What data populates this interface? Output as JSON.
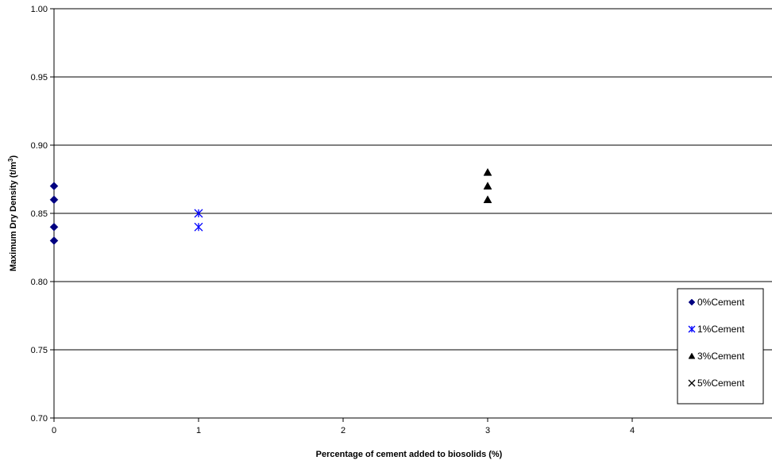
{
  "chart_data": {
    "type": "scatter",
    "xlabel": "Percentage of cement added to biosolids (%)",
    "ylabel_main": "Maximum Dry Density (t/m",
    "ylabel_sup": "3",
    "ylabel_end": ")",
    "xlim": [
      0,
      4.9
    ],
    "ylim": [
      0.7,
      1.0
    ],
    "x_ticks": [
      {
        "value": 0,
        "label": "0"
      },
      {
        "value": 1,
        "label": "1"
      },
      {
        "value": 2,
        "label": "2"
      },
      {
        "value": 3,
        "label": "3"
      },
      {
        "value": 4,
        "label": "4"
      }
    ],
    "y_ticks": [
      {
        "value": 0.7,
        "label": "0.70"
      },
      {
        "value": 0.75,
        "label": "0.75"
      },
      {
        "value": 0.8,
        "label": "0.80"
      },
      {
        "value": 0.85,
        "label": "0.85"
      },
      {
        "value": 0.9,
        "label": "0.90"
      },
      {
        "value": 0.95,
        "label": "0.95"
      },
      {
        "value": 1.0,
        "label": "1.00"
      }
    ],
    "grid": "horizontal",
    "legend_position": "bottom-right",
    "series": [
      {
        "name": "0%Cement",
        "marker": "diamond",
        "color": "#000080",
        "x": [
          0,
          0,
          0,
          0
        ],
        "y": [
          0.87,
          0.86,
          0.84,
          0.83
        ]
      },
      {
        "name": "1%Cement",
        "marker": "asterisk",
        "color": "#0000FF",
        "x": [
          1,
          1
        ],
        "y": [
          0.85,
          0.84
        ]
      },
      {
        "name": "3%Cement",
        "marker": "triangle",
        "color": "#000000",
        "x": [
          3,
          3,
          3
        ],
        "y": [
          0.88,
          0.87,
          0.86
        ]
      },
      {
        "name": "5%Cement",
        "marker": "cross",
        "color": "#000000",
        "x": [],
        "y": []
      }
    ]
  }
}
